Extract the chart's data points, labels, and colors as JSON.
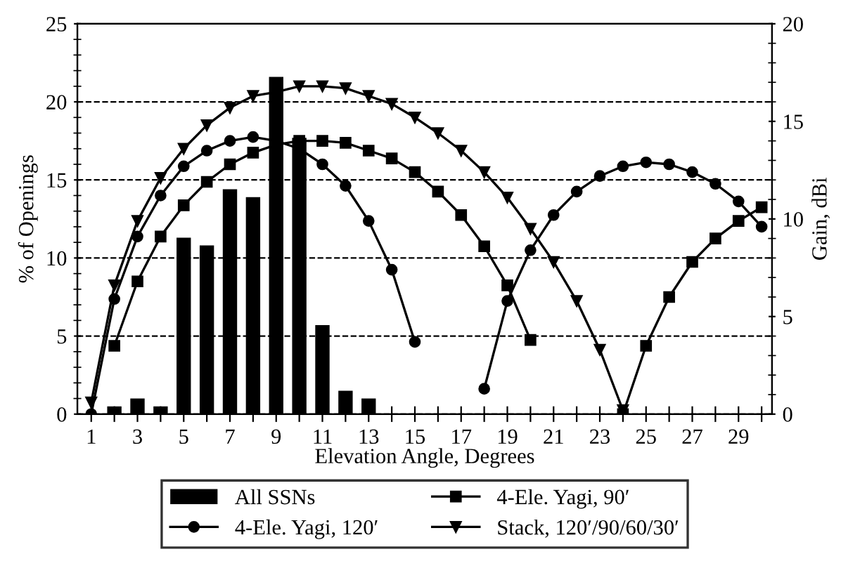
{
  "chart_data": {
    "type": "bar",
    "xlabel": "Elevation Angle, Degrees",
    "ylabel": "% of Openings",
    "y2label": "Gain, dBi",
    "categories": [
      "1",
      null,
      "3",
      null,
      "5",
      null,
      "7",
      null,
      "9",
      null,
      "11",
      null,
      "13",
      null,
      "15",
      null,
      "17",
      null,
      "19",
      null,
      "21",
      null,
      "23",
      null,
      "25",
      null,
      "27",
      null,
      "29",
      null
    ],
    "series": [
      {
        "name": "All SSNs",
        "color": "#000000",
        "values": [
          null,
          0.5,
          1.0,
          0.5,
          11.3,
          10.8,
          14.4,
          13.9,
          21.6,
          17.7,
          5.7,
          1.5,
          1.0,
          null,
          null,
          null,
          null,
          null,
          null,
          null,
          null,
          null,
          null,
          null,
          null,
          null,
          null,
          null,
          null,
          null
        ]
      },
      {
        "name": "4-Ele. Yagi, 90′",
        "type": "line",
        "axis": "y2",
        "color": "#000000",
        "marker": "square",
        "values": [
          null,
          3.5,
          6.8,
          9.1,
          10.7,
          11.9,
          12.8,
          13.4,
          13.8,
          14.0,
          14.0,
          13.9,
          13.5,
          13.1,
          12.4,
          11.4,
          10.2,
          8.6,
          6.6,
          3.8,
          null,
          null,
          null,
          0,
          3.5,
          6.0,
          7.8,
          9.0,
          9.9,
          10.6
        ]
      },
      {
        "name": "4-Ele. Yagi, 120′",
        "type": "line",
        "axis": "y2",
        "color": "#000000",
        "marker": "circle",
        "values": [
          0,
          5.9,
          9.1,
          11.2,
          12.7,
          13.5,
          14.0,
          14.2,
          14.0,
          13.6,
          12.8,
          11.7,
          9.9,
          7.4,
          3.7,
          null,
          null,
          1.3,
          5.8,
          8.4,
          10.2,
          11.4,
          12.2,
          12.7,
          12.9,
          12.8,
          12.4,
          11.8,
          10.9,
          9.6
        ]
      },
      {
        "name": "Stack, 120′/90/60/30′",
        "type": "line",
        "axis": "y2",
        "color": "#000000",
        "marker": "triangle",
        "values": [
          0.6,
          6.6,
          9.9,
          12.1,
          13.6,
          14.8,
          15.7,
          16.3,
          16.5,
          16.8,
          16.8,
          16.7,
          16.3,
          15.9,
          15.2,
          14.4,
          13.5,
          12.4,
          11.1,
          9.5,
          7.8,
          5.8,
          3.3,
          0.2,
          null,
          null,
          null,
          null,
          null,
          null
        ]
      }
    ],
    "ylim": [
      0,
      25
    ],
    "yticks": [
      0,
      5,
      10,
      15,
      20,
      25
    ],
    "y2lim": [
      0,
      20
    ],
    "y2ticks": [
      0,
      5,
      10,
      15,
      20
    ],
    "grid": "y",
    "legend": "bottom",
    "line_style": "solid"
  }
}
